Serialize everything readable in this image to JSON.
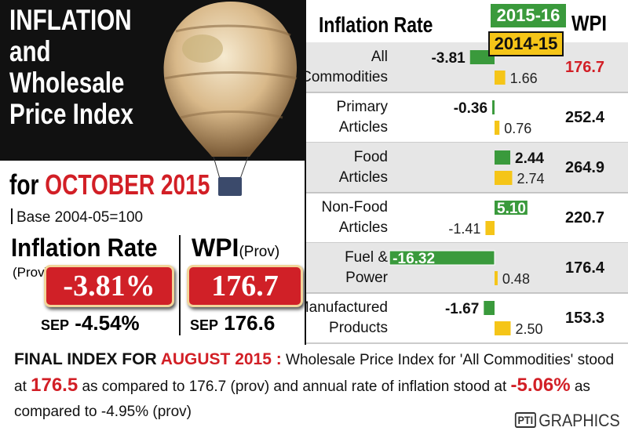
{
  "header": {
    "title": "INFLATION\nand\nWholesale\nPrice Index",
    "for_prefix": "for ",
    "month": "OCTOBER 2015",
    "base": "Base 2004-05=100"
  },
  "inflation": {
    "heading": "Inflation Rate",
    "prov": "(Prov)",
    "value": "-3.81%",
    "sep_label": "SEP",
    "sep_value": "-4.54%"
  },
  "wpi": {
    "heading": "WPI",
    "prov": "(Prov)",
    "value": "176.7",
    "sep_label": "SEP",
    "sep_value": "176.6"
  },
  "colors": {
    "red": "#d21f26",
    "green": "#3a9a3c",
    "yellow": "#f5c518",
    "band": "#e6e6e6"
  },
  "chart_data": {
    "type": "bar",
    "title": "Inflation Rate",
    "legend": [
      "2015-16",
      "2014-15"
    ],
    "wpi_header": "WPI",
    "categories": [
      "All Commodities",
      "Primary Articles",
      "Food Articles",
      "Non-Food Articles",
      "Fuel & Power",
      "Manufactured Products"
    ],
    "category_lines": [
      [
        "All",
        "Commodities"
      ],
      [
        "Primary",
        "Articles"
      ],
      [
        "Food",
        "Articles"
      ],
      [
        "Non-Food",
        "Articles"
      ],
      [
        "Fuel &",
        "Power"
      ],
      [
        "Manufactured",
        "Products"
      ]
    ],
    "series": [
      {
        "name": "2015-16",
        "values": [
          -3.81,
          -0.36,
          2.44,
          5.1,
          -16.32,
          -1.67
        ],
        "labels": [
          "-3.81",
          "-0.36",
          "2.44",
          "5.10",
          "-16.32",
          "-1.67"
        ]
      },
      {
        "name": "2014-15",
        "values": [
          1.66,
          0.76,
          2.74,
          -1.41,
          0.48,
          2.5
        ],
        "labels": [
          "1.66",
          "0.76",
          "2.74",
          "-1.41",
          "0.48",
          "2.50"
        ]
      }
    ],
    "wpi": [
      "176.7",
      "252.4",
      "264.9",
      "220.7",
      "176.4",
      "153.3"
    ]
  },
  "footer": {
    "heading_prefix": "FINAL INDEX FOR ",
    "heading_month": "AUGUST 2015 :",
    "text1": " Wholesale Price Index for 'All Commodities' stood at ",
    "wpi_final": "176.5",
    "text2": " as compared to 176.7 (prov) and annual rate of inflation stood at ",
    "inflation_final": "-5.06%",
    "text3": " as compared to -4.95% (prov)",
    "credit_logo": "PTI",
    "credit": "GRAPHICS"
  }
}
